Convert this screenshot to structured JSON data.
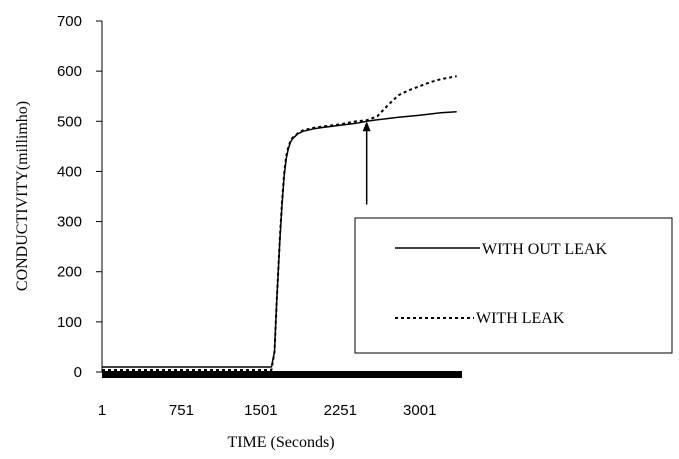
{
  "chart_data": {
    "type": "line",
    "xlabel": "TIME (Seconds)",
    "ylabel": "CONDUCTIVITY(millimho)",
    "ylim": [
      0,
      700
    ],
    "yticks": [
      0,
      100,
      200,
      300,
      400,
      500,
      600,
      700
    ],
    "xlim": [
      1,
      3400
    ],
    "xticks": [
      1,
      751,
      1501,
      2251,
      3001
    ],
    "grid": false,
    "legend_position": "right",
    "series": [
      {
        "name": "WITH OUT LEAK",
        "style": "solid",
        "x": [
          1,
          1200,
          1600,
          1630,
          1650,
          1680,
          1700,
          1720,
          1740,
          1760,
          1780,
          1800,
          1850,
          1900,
          2000,
          2100,
          2250,
          2400,
          2500,
          2600,
          2800,
          3000,
          3200,
          3350
        ],
        "y": [
          10,
          10,
          10,
          40,
          140,
          260,
          330,
          390,
          425,
          445,
          458,
          465,
          475,
          480,
          485,
          488,
          492,
          496,
          500,
          503,
          508,
          512,
          517,
          519
        ]
      },
      {
        "name": "WITH LEAK",
        "style": "dotted",
        "x": [
          1,
          1200,
          1600,
          1630,
          1650,
          1680,
          1700,
          1720,
          1740,
          1760,
          1780,
          1800,
          1850,
          1900,
          2000,
          2100,
          2250,
          2400,
          2500,
          2600,
          2700,
          2800,
          2900,
          3000,
          3100,
          3200,
          3350
        ],
        "y": [
          4,
          4,
          4,
          40,
          140,
          265,
          335,
          395,
          430,
          448,
          460,
          467,
          476,
          482,
          487,
          490,
          494,
          500,
          502,
          510,
          532,
          552,
          562,
          570,
          578,
          584,
          590
        ]
      }
    ],
    "annotations": [
      {
        "type": "arrow",
        "x": 2500,
        "y_from": 330,
        "y_to": 500
      }
    ]
  }
}
